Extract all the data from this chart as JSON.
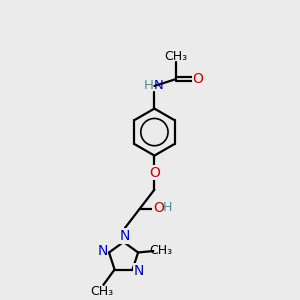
{
  "bg_color": "#ebebeb",
  "bond_color": "#000000",
  "N_color": "#0000cc",
  "O_color": "#cc0000",
  "H_color": "#4a9090",
  "line_width": 1.6,
  "figsize": [
    3.0,
    3.0
  ],
  "dpi": 100,
  "xlim": [
    0,
    10
  ],
  "ylim": [
    0,
    10
  ]
}
